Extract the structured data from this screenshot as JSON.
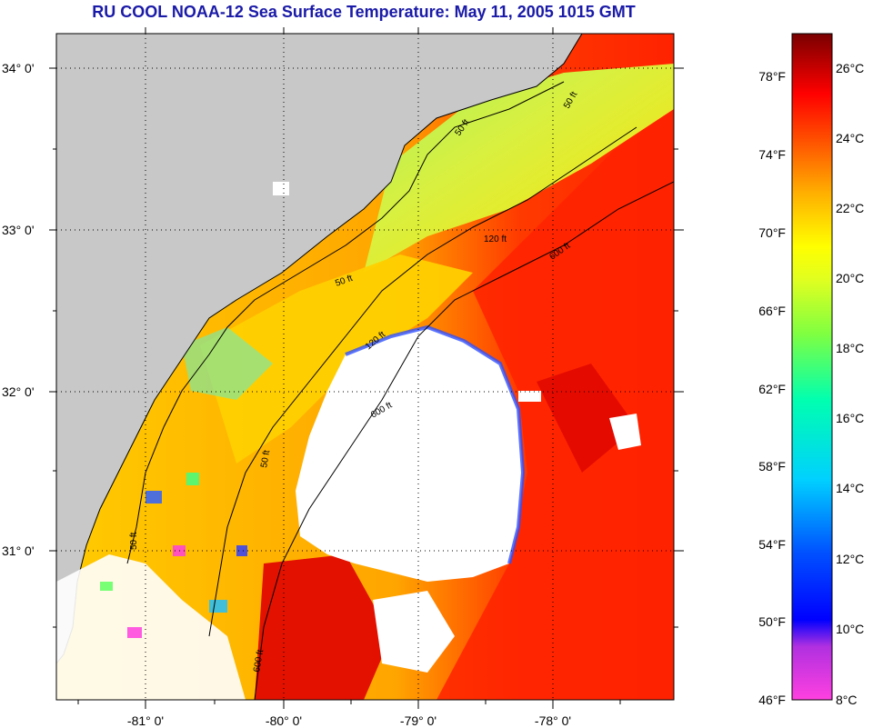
{
  "title": "RU COOL  NOAA-12  Sea Surface Temperature:  May 11, 2005 1015 GMT",
  "map": {
    "lat_ticks": [
      {
        "label": "34° 0'",
        "value": 34.0
      },
      {
        "label": "33° 0'",
        "value": 33.0
      },
      {
        "label": "32° 0'",
        "value": 32.0
      },
      {
        "label": "31° 0'",
        "value": 31.0
      }
    ],
    "lon_ticks": [
      {
        "label": "-81° 0'",
        "value": -81.0
      },
      {
        "label": "-80° 0'",
        "value": -80.0
      },
      {
        "label": "-79° 0'",
        "value": -79.0
      },
      {
        "label": "-78° 0'",
        "value": -78.0
      }
    ],
    "contour_labels": [
      "50 ft",
      "50 ft",
      "50 ft",
      "120 ft",
      "600 ft",
      "600 ft",
      "600 ft",
      "50 ft",
      "50 ft",
      "120 ft"
    ],
    "colors": {
      "land": "#c8c8c8",
      "cloud": "#ffffff",
      "cold_coastal": "#e8e040",
      "warm_stream": "#ff2a00"
    }
  },
  "legend": {
    "fahrenheit": [
      "78°F",
      "74°F",
      "70°F",
      "66°F",
      "62°F",
      "58°F",
      "54°F",
      "50°F",
      "46°F"
    ],
    "celsius": [
      "26°C",
      "24°C",
      "22°C",
      "20°C",
      "18°C",
      "16°C",
      "14°C",
      "12°C",
      "10°C",
      "8°C"
    ]
  }
}
